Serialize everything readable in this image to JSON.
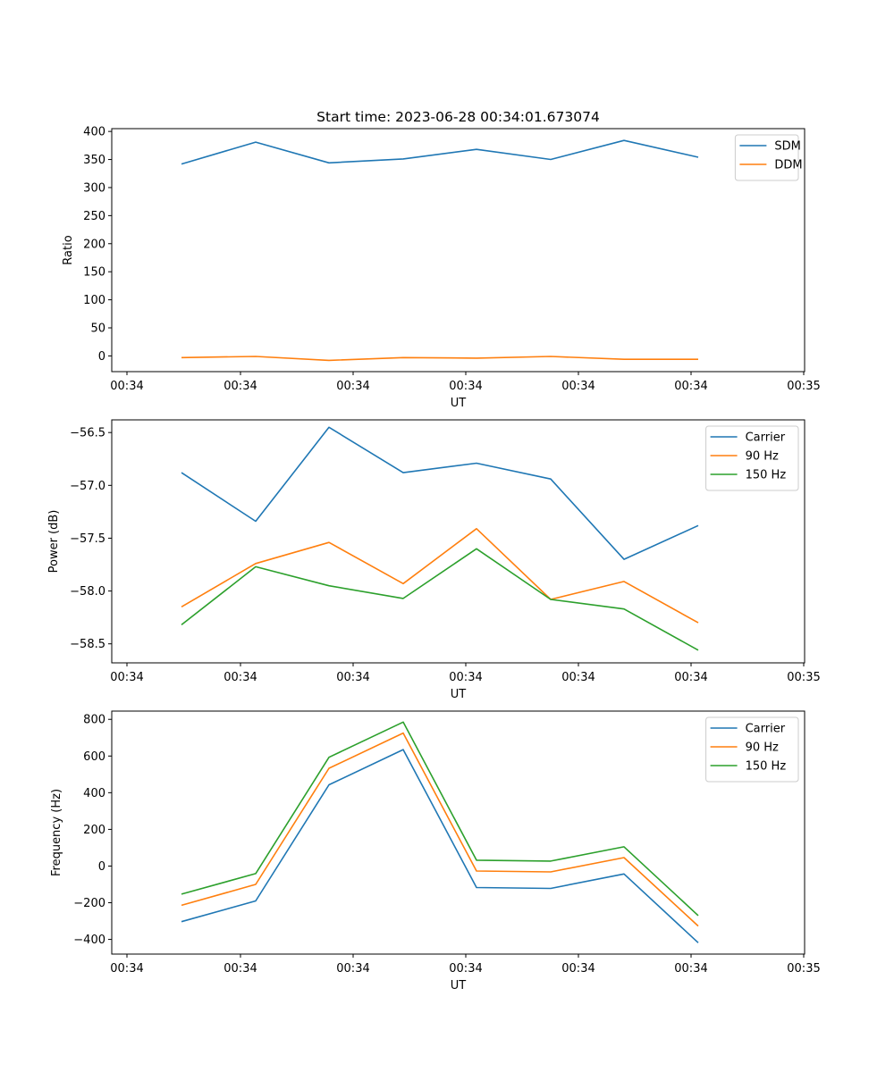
{
  "chart_data": [
    {
      "type": "line",
      "title": "Start time: 2023-06-28 00:34:01.673074",
      "xlabel": "UT",
      "ylabel": "Ratio",
      "x_tick_labels": [
        "00:34",
        "00:34",
        "00:34",
        "00:34",
        "00:34",
        "00:34",
        "00:34",
        "00:35"
      ],
      "ylim": [
        -28,
        405
      ],
      "y_ticks": [
        0,
        50,
        100,
        150,
        200,
        250,
        300,
        350,
        400
      ],
      "y_tick_labels": [
        "0",
        "50",
        "100",
        "150",
        "200",
        "250",
        "300",
        "350",
        "400"
      ],
      "legend_position": "top-right",
      "grid": false,
      "series": [
        {
          "name": "SDM",
          "color": "#1f77b4",
          "values": [
            342,
            381,
            344,
            351,
            368,
            350,
            384,
            354
          ]
        },
        {
          "name": "DDM",
          "color": "#ff7f0e",
          "values": [
            -3,
            -1,
            -8,
            -3,
            -4,
            -1,
            -6,
            -6
          ]
        }
      ]
    },
    {
      "type": "line",
      "title": "",
      "xlabel": "UT",
      "ylabel": "Power (dB)",
      "x_tick_labels": [
        "00:34",
        "00:34",
        "00:34",
        "00:34",
        "00:34",
        "00:34",
        "00:34",
        "00:35"
      ],
      "ylim": [
        -58.68,
        -56.38
      ],
      "y_ticks": [
        -58.5,
        -58.0,
        -57.5,
        -57.0,
        -56.5
      ],
      "y_tick_labels": [
        "−58.5",
        "−58.0",
        "−57.5",
        "−57.0",
        "−56.5"
      ],
      "legend_position": "top-right",
      "grid": false,
      "series": [
        {
          "name": "Carrier",
          "color": "#1f77b4",
          "values": [
            -56.88,
            -57.34,
            -56.45,
            -56.88,
            -56.79,
            -56.94,
            -57.7,
            -57.38
          ]
        },
        {
          "name": "90 Hz",
          "color": "#ff7f0e",
          "values": [
            -58.15,
            -57.74,
            -57.54,
            -57.93,
            -57.41,
            -58.08,
            -57.91,
            -58.3
          ]
        },
        {
          "name": "150 Hz",
          "color": "#2ca02c",
          "values": [
            -58.32,
            -57.77,
            -57.95,
            -58.07,
            -57.6,
            -58.08,
            -58.17,
            -58.56
          ]
        }
      ]
    },
    {
      "type": "line",
      "title": "",
      "xlabel": "UT",
      "ylabel": "Frequency (Hz)",
      "x_tick_labels": [
        "00:34",
        "00:34",
        "00:34",
        "00:34",
        "00:34",
        "00:34",
        "00:34",
        "00:35"
      ],
      "ylim": [
        -480,
        845
      ],
      "y_ticks": [
        -400,
        -200,
        0,
        200,
        400,
        600,
        800
      ],
      "y_tick_labels": [
        "−400",
        "−200",
        "0",
        "200",
        "400",
        "600",
        "800"
      ],
      "legend_position": "top-right",
      "grid": false,
      "series": [
        {
          "name": "Carrier",
          "color": "#1f77b4",
          "values": [
            -303,
            -190,
            443,
            635,
            -117,
            -122,
            -43,
            -418
          ]
        },
        {
          "name": "90 Hz",
          "color": "#ff7f0e",
          "values": [
            -214,
            -100,
            533,
            725,
            -27,
            -32,
            46,
            -327
          ]
        },
        {
          "name": "150 Hz",
          "color": "#2ca02c",
          "values": [
            -153,
            -41,
            593,
            785,
            32,
            27,
            105,
            -270
          ]
        }
      ]
    }
  ]
}
